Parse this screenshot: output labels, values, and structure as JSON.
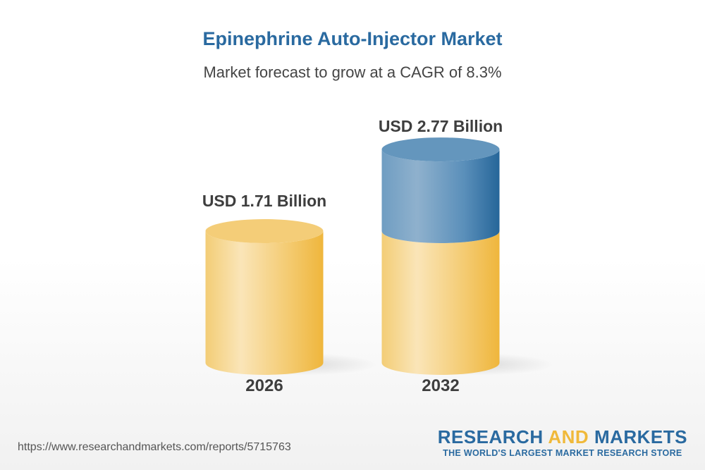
{
  "title": "Epinephrine Auto-Injector Market",
  "subtitle": "Market forecast to grow at a CAGR of 8.3%",
  "chart_data": {
    "type": "bar",
    "style": "3d-cylinder",
    "categories": [
      "2026",
      "2032"
    ],
    "values": [
      1.71,
      2.77
    ],
    "data_labels": [
      "USD 1.71 Billion",
      "USD 2.77 Billion"
    ],
    "unit": "USD Billion",
    "cagr": "8.3%",
    "colors": {
      "base": "#f0b93a",
      "growth": "#2a6aa0"
    }
  },
  "footer": {
    "url": "https://www.researchandmarkets.com/reports/5715763",
    "logo_part1": "RESEARCH ",
    "logo_part2": "AND",
    "logo_part3": " MARKETS",
    "tagline": "THE WORLD'S LARGEST MARKET RESEARCH STORE"
  }
}
